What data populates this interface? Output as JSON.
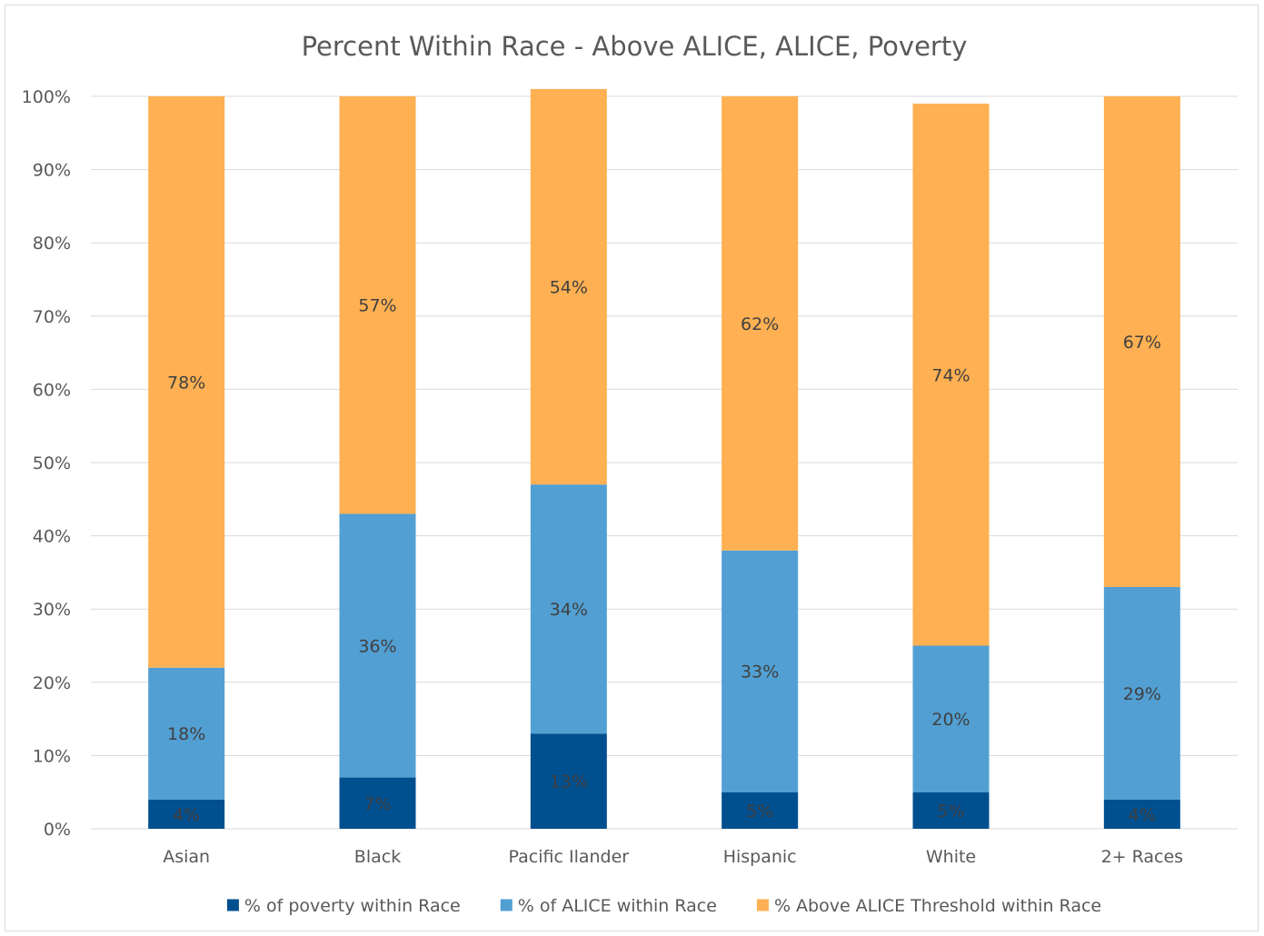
{
  "chart_data": {
    "type": "bar",
    "stacked": true,
    "title": "Percent Within Race - Above ALICE, ALICE, Poverty",
    "xlabel": "",
    "ylabel": "",
    "ylim": [
      0,
      100
    ],
    "yticks": [
      0,
      10,
      20,
      30,
      40,
      50,
      60,
      70,
      80,
      90,
      100
    ],
    "ytick_labels": [
      "0%",
      "10%",
      "20%",
      "30%",
      "40%",
      "50%",
      "60%",
      "70%",
      "80%",
      "90%",
      "100%"
    ],
    "grid": true,
    "legend_position": "bottom",
    "categories": [
      "Asian",
      "Black",
      "Pacific Ilander",
      "Hispanic",
      "White",
      "2+ Races"
    ],
    "series": [
      {
        "name": "% of poverty within Race",
        "color": "#004f8f",
        "values": [
          4,
          7,
          13,
          5,
          5,
          4
        ],
        "labels": [
          "4%",
          "7%",
          "13%",
          "5%",
          "5%",
          "4%"
        ]
      },
      {
        "name": "% of ALICE within Race",
        "color": "#529fd3",
        "values": [
          18,
          36,
          34,
          33,
          20,
          29
        ],
        "labels": [
          "18%",
          "36%",
          "34%",
          "33%",
          "20%",
          "29%"
        ]
      },
      {
        "name": "% Above ALICE Threshold within Race",
        "color": "#feb052",
        "values": [
          78,
          57,
          54,
          62,
          74,
          67
        ],
        "labels": [
          "78%",
          "57%",
          "54%",
          "62%",
          "74%",
          "67%"
        ]
      }
    ]
  }
}
